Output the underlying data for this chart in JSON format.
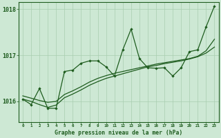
{
  "title": "Graphe pression niveau de la mer (hPa)",
  "xlabel_ticks": [
    0,
    1,
    2,
    3,
    4,
    5,
    6,
    7,
    8,
    9,
    10,
    11,
    12,
    13,
    14,
    15,
    16,
    17,
    18,
    19,
    20,
    21,
    22,
    23
  ],
  "ylim": [
    1015.55,
    1018.15
  ],
  "yticks": [
    1016,
    1017,
    1018
  ],
  "bg_color": "#cde8d4",
  "grid_color": "#a8cdb0",
  "line_color": "#1e5c1e",
  "y_jagged": [
    1016.05,
    1015.93,
    1016.28,
    1015.85,
    1015.85,
    1016.65,
    1016.68,
    1016.83,
    1016.88,
    1016.88,
    1016.75,
    1016.55,
    1017.12,
    1017.57,
    1016.93,
    1016.73,
    1016.72,
    1016.73,
    1016.55,
    1016.73,
    1017.08,
    1017.12,
    1017.62,
    1018.07
  ],
  "y_smooth1": [
    1016.05,
    1016.0,
    1015.93,
    1015.87,
    1015.92,
    1016.08,
    1016.16,
    1016.25,
    1016.35,
    1016.43,
    1016.5,
    1016.55,
    1016.6,
    1016.65,
    1016.7,
    1016.75,
    1016.78,
    1016.82,
    1016.85,
    1016.88,
    1016.92,
    1016.97,
    1017.05,
    1017.18
  ],
  "y_smooth2": [
    1016.12,
    1016.07,
    1016.02,
    1015.98,
    1016.0,
    1016.15,
    1016.23,
    1016.32,
    1016.42,
    1016.5,
    1016.56,
    1016.61,
    1016.65,
    1016.69,
    1016.73,
    1016.77,
    1016.81,
    1016.84,
    1016.87,
    1016.9,
    1016.93,
    1016.98,
    1017.1,
    1017.35
  ]
}
